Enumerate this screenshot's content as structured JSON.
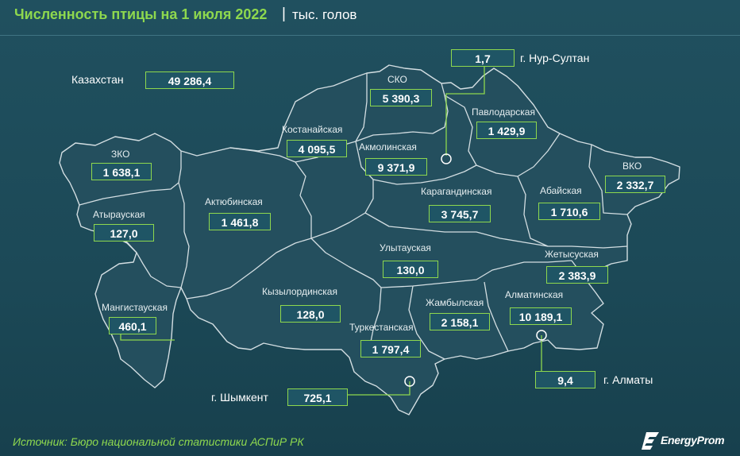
{
  "header": {
    "title": "Численность птицы на 1 июля 2022",
    "separator": "|",
    "unit": "тыс. голов"
  },
  "map": {
    "total": {
      "name": "Казахстан",
      "value": "49 286,4"
    },
    "regions": [
      {
        "id": "zko",
        "name": "ЗКО",
        "value": "1 638,1"
      },
      {
        "id": "atyrau",
        "name": "Атырауская",
        "value": "127,0"
      },
      {
        "id": "mangistau",
        "name": "Мангистауская",
        "value": "460,1"
      },
      {
        "id": "aktobe",
        "name": "Актюбинская",
        "value": "1 461,8"
      },
      {
        "id": "kostanay",
        "name": "Костанайская",
        "value": "4 095,5"
      },
      {
        "id": "sko",
        "name": "СКО",
        "value": "5 390,3"
      },
      {
        "id": "akmola",
        "name": "Акмолинская",
        "value": "9 371,9"
      },
      {
        "id": "pavlodar",
        "name": "Павлодарская",
        "value": "1 429,9"
      },
      {
        "id": "karaganda",
        "name": "Карагандинская",
        "value": "3 745,7"
      },
      {
        "id": "abay",
        "name": "Абайская",
        "value": "1 710,6"
      },
      {
        "id": "vko",
        "name": "ВКО",
        "value": "2 332,7"
      },
      {
        "id": "ulytau",
        "name": "Улытауская",
        "value": "130,0"
      },
      {
        "id": "zhetysu",
        "name": "Жетысуская",
        "value": "2 383,9"
      },
      {
        "id": "kyzylorda",
        "name": "Кызылординская",
        "value": "128,0"
      },
      {
        "id": "zhambyl",
        "name": "Жамбылская",
        "value": "2 158,1"
      },
      {
        "id": "almaty_obl",
        "name": "Алматинская",
        "value": "10 189,1"
      },
      {
        "id": "turkestan",
        "name": "Туркестанская",
        "value": "1 797,4"
      }
    ],
    "cities": [
      {
        "id": "nur_sultan",
        "name": "г. Нур-Султан",
        "value": "1,7"
      },
      {
        "id": "almaty",
        "name": "г. Алматы",
        "value": "9,4"
      },
      {
        "id": "shymkent",
        "name": "г. Шымкент",
        "value": "725,1"
      }
    ]
  },
  "footer": {
    "source": "Источник: Бюро национальной статистики АСПиР РК",
    "brand": "EnergyProm"
  },
  "colors": {
    "background": "#1e4e5c",
    "region_fill": "#244f5e",
    "border": "#c9d6db",
    "accent_green": "#8ed84e"
  }
}
